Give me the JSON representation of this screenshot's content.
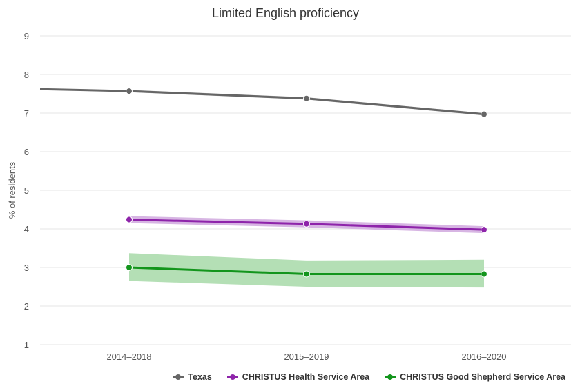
{
  "chart_data": {
    "type": "line",
    "title": "Limited English proficiency",
    "xlabel": "",
    "ylabel": "% of residents",
    "categories": [
      "2014–2018",
      "2015–2019",
      "2016–2020"
    ],
    "ylim": [
      1,
      9
    ],
    "yticks": [
      1,
      2,
      3,
      4,
      5,
      6,
      7,
      8,
      9
    ],
    "grid": true,
    "legend_position": "bottom-right",
    "series": [
      {
        "name": "Texas",
        "color": "#666666",
        "band_color": "#bbbbbb",
        "values": [
          7.57,
          7.38,
          6.97
        ],
        "lower": [
          7.54,
          7.35,
          6.94
        ],
        "upper": [
          7.6,
          7.41,
          7.0
        ],
        "edge_left": 7.62
      },
      {
        "name": "CHRISTUS Health Service Area",
        "color": "#8e24aa",
        "band_color": "#d7b5e3",
        "values": [
          4.24,
          4.13,
          3.98
        ],
        "lower": [
          4.15,
          4.04,
          3.89
        ],
        "upper": [
          4.33,
          4.22,
          4.07
        ]
      },
      {
        "name": "CHRISTUS Good Shepherd Service Area",
        "color": "#13951c",
        "band_color": "#b4dfb5",
        "values": [
          3.0,
          2.83,
          2.83
        ],
        "lower": [
          2.65,
          2.5,
          2.48
        ],
        "upper": [
          3.37,
          3.18,
          3.2
        ]
      }
    ]
  }
}
